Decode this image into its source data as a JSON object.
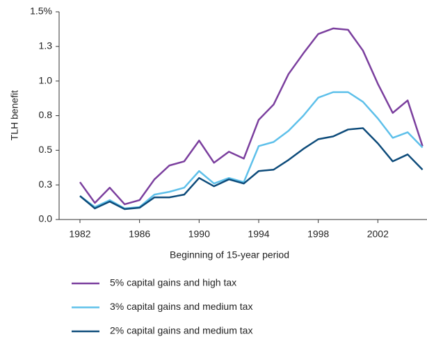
{
  "chart_data": {
    "type": "line",
    "y_label": "TLH benefit",
    "x_label": "Beginning of 15-year period",
    "x": [
      1982,
      1983,
      1984,
      1985,
      1986,
      1987,
      1988,
      1989,
      1990,
      1991,
      1992,
      1993,
      1994,
      1995,
      1996,
      1997,
      1998,
      1999,
      2000,
      2001,
      2002,
      2003,
      2004,
      2005
    ],
    "series": [
      {
        "name": "5% capital gains and high tax",
        "color": "#7b3f9e",
        "values": [
          0.27,
          0.12,
          0.23,
          0.11,
          0.14,
          0.29,
          0.39,
          0.42,
          0.57,
          0.41,
          0.49,
          0.44,
          0.72,
          0.83,
          1.05,
          1.2,
          1.34,
          1.38,
          1.37,
          1.22,
          0.98,
          0.77,
          0.86,
          0.53
        ]
      },
      {
        "name": "3% capital gains and medium tax",
        "color": "#5ec0ea",
        "values": [
          0.17,
          0.09,
          0.14,
          0.08,
          0.09,
          0.18,
          0.2,
          0.23,
          0.35,
          0.26,
          0.3,
          0.27,
          0.53,
          0.56,
          0.64,
          0.75,
          0.88,
          0.92,
          0.92,
          0.85,
          0.73,
          0.59,
          0.63,
          0.52
        ]
      },
      {
        "name": "2% capital gains and medium tax",
        "color": "#0d4b7a",
        "values": [
          0.17,
          0.08,
          0.13,
          0.075,
          0.085,
          0.16,
          0.16,
          0.18,
          0.3,
          0.24,
          0.29,
          0.26,
          0.35,
          0.36,
          0.43,
          0.51,
          0.58,
          0.6,
          0.65,
          0.66,
          0.55,
          0.42,
          0.47,
          0.36
        ]
      }
    ],
    "xlim": [
      1980.6,
      2005.3
    ],
    "xticks": [
      1982,
      1986,
      1990,
      1994,
      1998,
      2002
    ],
    "ylim": [
      0,
      1.5
    ],
    "yticks": [
      {
        "value": 0,
        "label": "0.0"
      },
      {
        "value": 0.25,
        "label": "0.3"
      },
      {
        "value": 0.5,
        "label": "0.5"
      },
      {
        "value": 0.75,
        "label": "0.8"
      },
      {
        "value": 1,
        "label": "1.0"
      },
      {
        "value": 1.25,
        "label": "1.3"
      },
      {
        "value": 1.5,
        "label": "1.5%"
      }
    ],
    "grid": false
  }
}
